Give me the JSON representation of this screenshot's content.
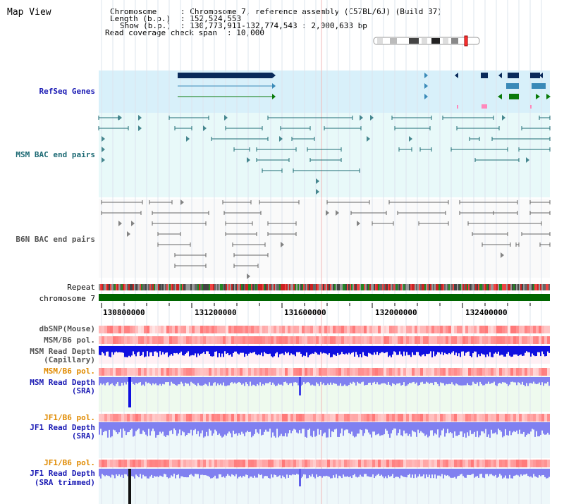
{
  "title": "Map View",
  "header": {
    "chromosome_key": "Chromosome",
    "chromosome_value": ": Chromosome 7, reference assembly (C57BL/6J) (Build 37)",
    "length_key": "Length (b.p.)",
    "length_value": ": 152,524,553",
    "show_key": "Show (b.p.)",
    "show_value": ": 130,773,911-132,774,543 : 2,000,633 bp",
    "coverage_key": "Read coverage check span",
    "coverage_value": ": 10,000"
  },
  "tracks": {
    "refseq": "RefSeq Genes",
    "msm_bac": "MSM BAC end pairs",
    "b6n_bac": "B6N BAC end pairs",
    "repeat": "Repeat",
    "chromosome": "chromosome 7",
    "dbsnp": "dbSNP(Mouse)",
    "msm_b6_pol_1": "MSM/B6 pol.",
    "msm_read_depth_cap_1": "MSM Read Depth",
    "msm_read_depth_cap_2": "(Capillary)",
    "msm_b6_pol_2": "MSM/B6 pol.",
    "msm_read_depth_sra_1": "MSM Read Depth",
    "msm_read_depth_sra_2": "(SRA)",
    "jf1_b6_pol_1": "JF1/B6 pol.",
    "jf1_read_depth_sra_1": "JF1 Read Depth",
    "jf1_read_depth_sra_2": "(SRA)",
    "jf1_b6_pol_2": "JF1/B6 pol.",
    "jf1_read_depth_trim_1": "JF1 Read Depth",
    "jf1_read_depth_trim_2": "(SRA trimmed)"
  },
  "axis": {
    "ticks": [
      "130800000",
      "131200000",
      "131600000",
      "132000000",
      "132400000"
    ]
  },
  "colors": {
    "refseq_bg": "#d8f0fa",
    "bac_bg": "#e8f9f9",
    "gene_dark": "#0a2a5a",
    "gene_mid": "#3a8ab8",
    "gene_green": "#0a7a0a",
    "bac_line": "#1d6a74",
    "b6n_line": "#666666",
    "chromosome_bar": "#006600",
    "depth_blue": "#1010e0",
    "depth_light": "#8080f0",
    "pol_red": "#f06060"
  }
}
